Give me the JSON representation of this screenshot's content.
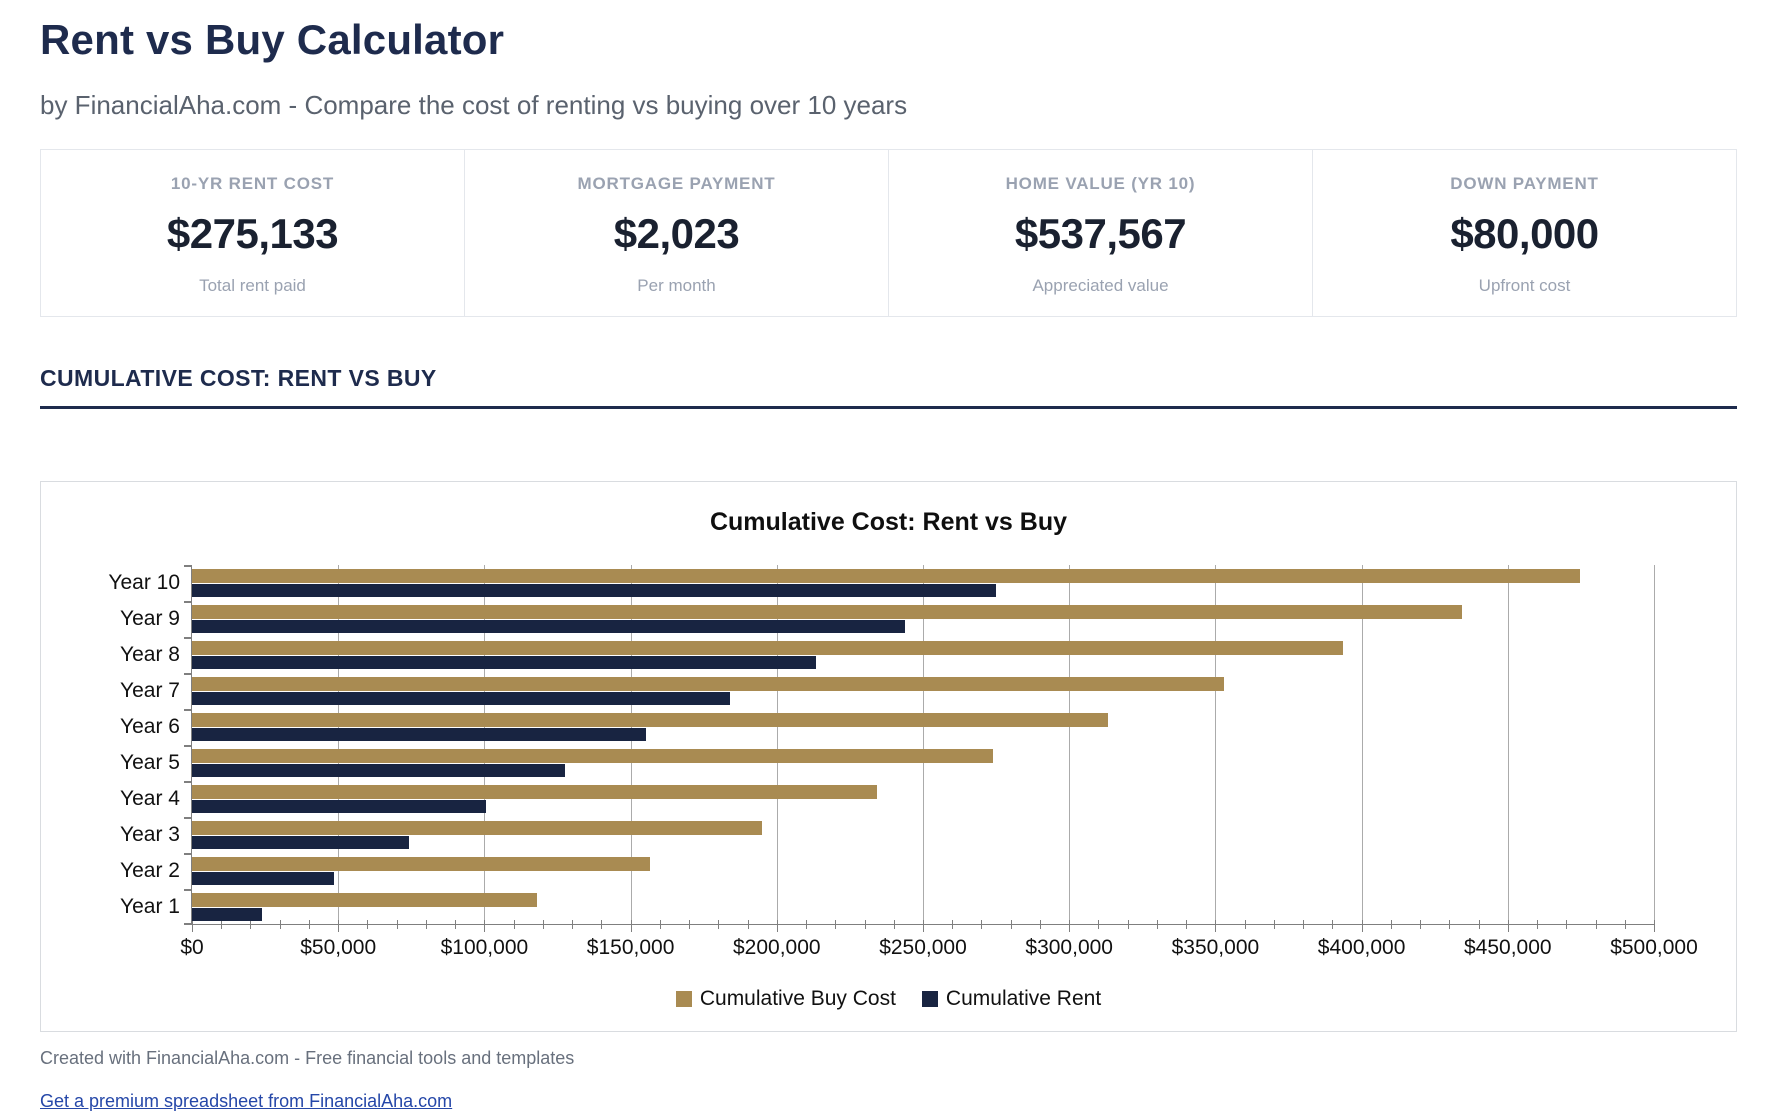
{
  "header": {
    "title": "Rent vs Buy Calculator",
    "subtitle": "by FinancialAha.com - Compare the cost of renting vs buying over 10 years"
  },
  "cards": [
    {
      "label": "10-YR RENT COST",
      "value": "$275,133",
      "sub": "Total rent paid"
    },
    {
      "label": "MORTGAGE PAYMENT",
      "value": "$2,023",
      "sub": "Per month"
    },
    {
      "label": "HOME VALUE (YR 10)",
      "value": "$537,567",
      "sub": "Appreciated value"
    },
    {
      "label": "DOWN PAYMENT",
      "value": "$80,000",
      "sub": "Upfront cost"
    }
  ],
  "section": {
    "title": "CUMULATIVE COST: RENT VS BUY"
  },
  "chart_data": {
    "type": "bar",
    "orientation": "horizontal",
    "title": "Cumulative Cost: Rent vs Buy",
    "categories": [
      "Year 10",
      "Year 9",
      "Year 8",
      "Year 7",
      "Year 6",
      "Year 5",
      "Year 4",
      "Year 3",
      "Year 2",
      "Year 1"
    ],
    "series": [
      {
        "name": "Cumulative Buy Cost",
        "color": "#a98b52",
        "values": [
          474700,
          434400,
          393500,
          353000,
          313300,
          273800,
          234300,
          195100,
          156600,
          118000
        ]
      },
      {
        "name": "Cumulative Rent",
        "color": "#182441",
        "values": [
          275133,
          243818,
          213416,
          183899,
          155242,
          127419,
          100407,
          74182,
          48720,
          24000
        ]
      }
    ],
    "xlim": [
      0,
      500000
    ],
    "x_tick_step": 50000,
    "x_minor_tick_step": 10000,
    "x_tick_labels": [
      "$0",
      "$50,000",
      "$100,000",
      "$150,000",
      "$200,000",
      "$250,000",
      "$300,000",
      "$350,000",
      "$400,000",
      "$450,000",
      "$500,000"
    ],
    "grid": true,
    "legend_position": "bottom"
  },
  "footer": {
    "credit": "Created with FinancialAha.com - Free financial tools and templates",
    "link": "Get a premium spreadsheet from FinancialAha.com"
  }
}
